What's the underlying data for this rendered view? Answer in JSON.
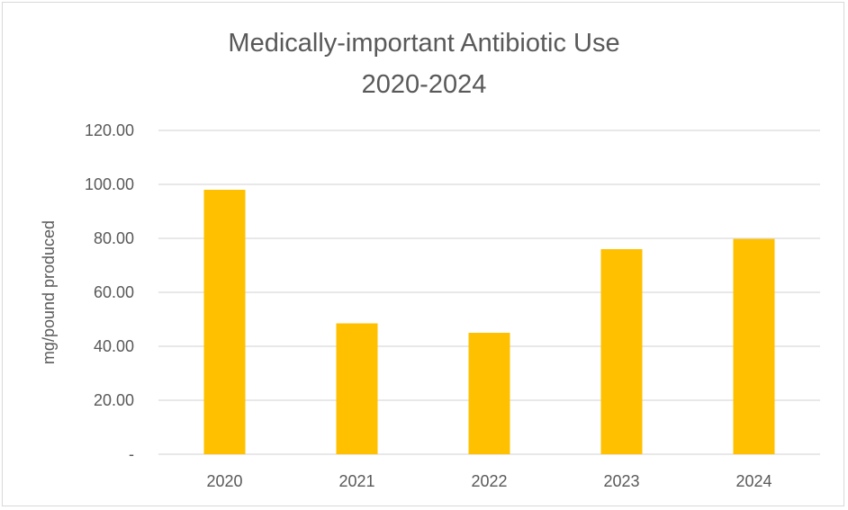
{
  "chart_data": {
    "type": "bar",
    "title": "Medically-important Antibiotic Use",
    "subtitle": "2020-2024",
    "categories": [
      "2020",
      "2021",
      "2022",
      "2023",
      "2024"
    ],
    "values": [
      98.0,
      48.5,
      45.0,
      76.0,
      79.8
    ],
    "ylabel": "mg/pound produced",
    "xlabel": "",
    "ylim": [
      0,
      120
    ],
    "yticks": [
      0,
      20,
      40,
      60,
      80,
      100,
      120
    ],
    "ytick_labels": [
      "-",
      "20.00",
      "40.00",
      "60.00",
      "80.00",
      "100.00",
      "120.00"
    ],
    "grid": true,
    "legend": "none",
    "bar_color": "#FFC000",
    "grid_color": "#D9D9D9",
    "text_color": "#595959"
  }
}
